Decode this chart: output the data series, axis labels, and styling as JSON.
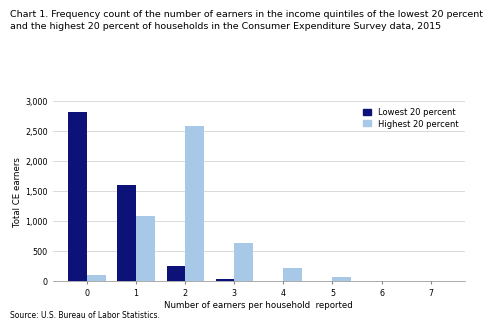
{
  "title_line1": "Chart 1. Frequency count of the number of earners in the income quintiles of the lowest 20 percent",
  "title_line2": "and the highest 20 percent of households in the Consumer Expenditure Survey data, 2015",
  "ylabel": "Total CE earners",
  "xlabel": "Number of earners per household  reported",
  "source": "Source: U.S. Bureau of Labor Statistics.",
  "categories": [
    0,
    1,
    2,
    3,
    4,
    5,
    6,
    7
  ],
  "lowest_20": [
    2820,
    1600,
    250,
    30,
    0,
    0,
    0,
    0
  ],
  "highest_20": [
    100,
    1090,
    2590,
    630,
    210,
    60,
    0,
    0
  ],
  "lowest_color": "#0d1278",
  "highest_color": "#a8c8e8",
  "ylim": [
    0,
    3000
  ],
  "yticks": [
    0,
    500,
    1000,
    1500,
    2000,
    2500,
    3000
  ],
  "ytick_labels": [
    "0",
    "500",
    "1,000",
    "1,500",
    "2,000",
    "2,500",
    "3,000"
  ],
  "bar_width": 0.38,
  "legend_lowest": "Lowest 20 percent",
  "legend_highest": "Highest 20 percent",
  "background_color": "#ffffff",
  "grid_color": "#cccccc",
  "title_fontsize": 6.8,
  "axis_label_fontsize": 6.2,
  "tick_fontsize": 5.8,
  "legend_fontsize": 6.0,
  "source_fontsize": 5.5
}
